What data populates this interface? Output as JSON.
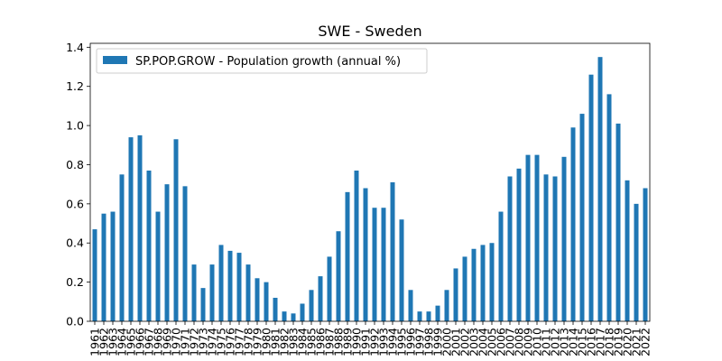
{
  "chart_data": {
    "type": "bar",
    "title": "SWE - Sweden",
    "xlabel": "",
    "ylabel": "",
    "ylim": [
      0,
      1.42
    ],
    "yticks": [
      "0.0",
      "0.2",
      "0.4",
      "0.6",
      "0.8",
      "1.0",
      "1.2",
      "1.4"
    ],
    "grid": false,
    "legend_position": "top-left",
    "colors": {
      "bar": "#1f77b4"
    },
    "categories": [
      "1961",
      "1962",
      "1963",
      "1964",
      "1965",
      "1966",
      "1967",
      "1968",
      "1969",
      "1970",
      "1971",
      "1972",
      "1973",
      "1974",
      "1975",
      "1976",
      "1977",
      "1978",
      "1979",
      "1980",
      "1981",
      "1982",
      "1983",
      "1984",
      "1985",
      "1986",
      "1987",
      "1988",
      "1989",
      "1990",
      "1991",
      "1992",
      "1993",
      "1994",
      "1995",
      "1996",
      "1997",
      "1998",
      "1999",
      "2000",
      "2001",
      "2002",
      "2003",
      "2004",
      "2005",
      "2006",
      "2007",
      "2008",
      "2009",
      "2010",
      "2011",
      "2012",
      "2013",
      "2014",
      "2015",
      "2016",
      "2017",
      "2018",
      "2019",
      "2020",
      "2021",
      "2022"
    ],
    "series": [
      {
        "name": "SP.POP.GROW - Population growth (annual %)",
        "values": [
          0.47,
          0.55,
          0.56,
          0.75,
          0.94,
          0.95,
          0.77,
          0.56,
          0.7,
          0.93,
          0.69,
          0.29,
          0.17,
          0.29,
          0.39,
          0.36,
          0.35,
          0.29,
          0.22,
          0.2,
          0.12,
          0.05,
          0.04,
          0.09,
          0.16,
          0.23,
          0.33,
          0.46,
          0.66,
          0.77,
          0.68,
          0.58,
          0.58,
          0.71,
          0.52,
          0.16,
          0.05,
          0.05,
          0.08,
          0.16,
          0.27,
          0.33,
          0.37,
          0.39,
          0.4,
          0.56,
          0.74,
          0.78,
          0.85,
          0.85,
          0.75,
          0.74,
          0.84,
          0.99,
          1.06,
          1.26,
          1.35,
          1.16,
          1.01,
          0.72,
          0.6,
          0.68
        ]
      }
    ]
  }
}
